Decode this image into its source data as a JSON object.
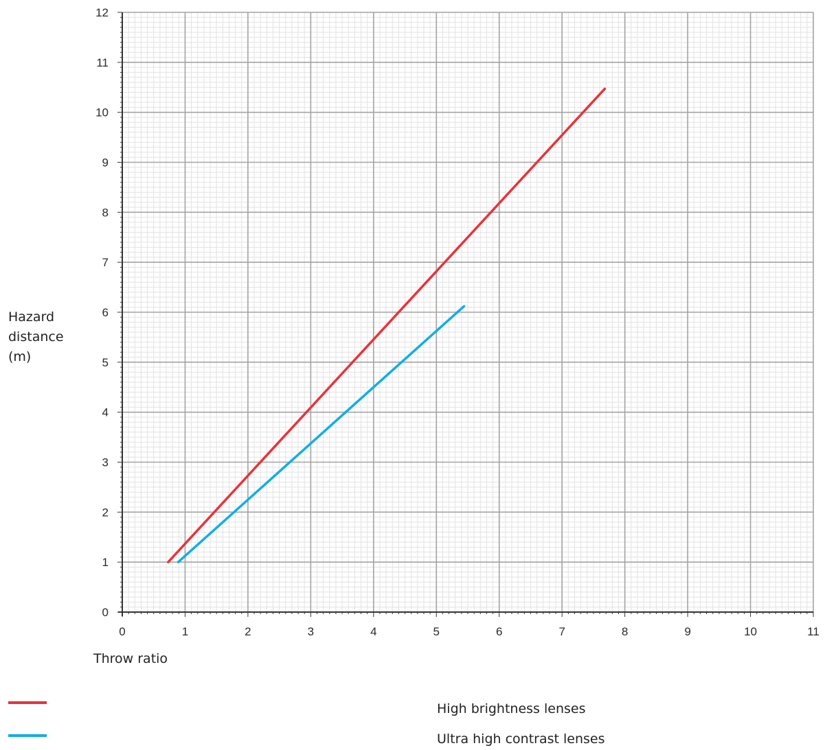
{
  "chart_data": {
    "type": "line",
    "xlabel": "Throw ratio",
    "ylabel": "Hazard distance (m)",
    "xlim": [
      0,
      11
    ],
    "ylim": [
      0,
      12
    ],
    "x_ticks": [
      "0",
      "1",
      "2",
      "3",
      "4",
      "5",
      "6",
      "7",
      "8",
      "9",
      "10",
      "11"
    ],
    "y_ticks": [
      "0",
      "1",
      "2",
      "3",
      "4",
      "5",
      "6",
      "7",
      "8",
      "9",
      "10",
      "11",
      "12"
    ],
    "grid": true,
    "series": [
      {
        "name": "High brightness lenses",
        "color": "#e8333a",
        "x": [
          0.73,
          7.68
        ],
        "y": [
          1.0,
          10.47
        ]
      },
      {
        "name": "Ultra high contrast lenses",
        "color": "#12aee3",
        "x": [
          0.89,
          5.44
        ],
        "y": [
          1.0,
          6.12
        ]
      }
    ]
  },
  "labels": {
    "ylabel_lines": [
      "Hazard",
      "distance",
      "(m)"
    ],
    "xlabel": "Throw ratio"
  },
  "legend": [
    {
      "label": "High brightness lenses",
      "color": "#e8333a"
    },
    {
      "label": "Ultra high contrast lenses",
      "color": "#12aee3"
    }
  ]
}
